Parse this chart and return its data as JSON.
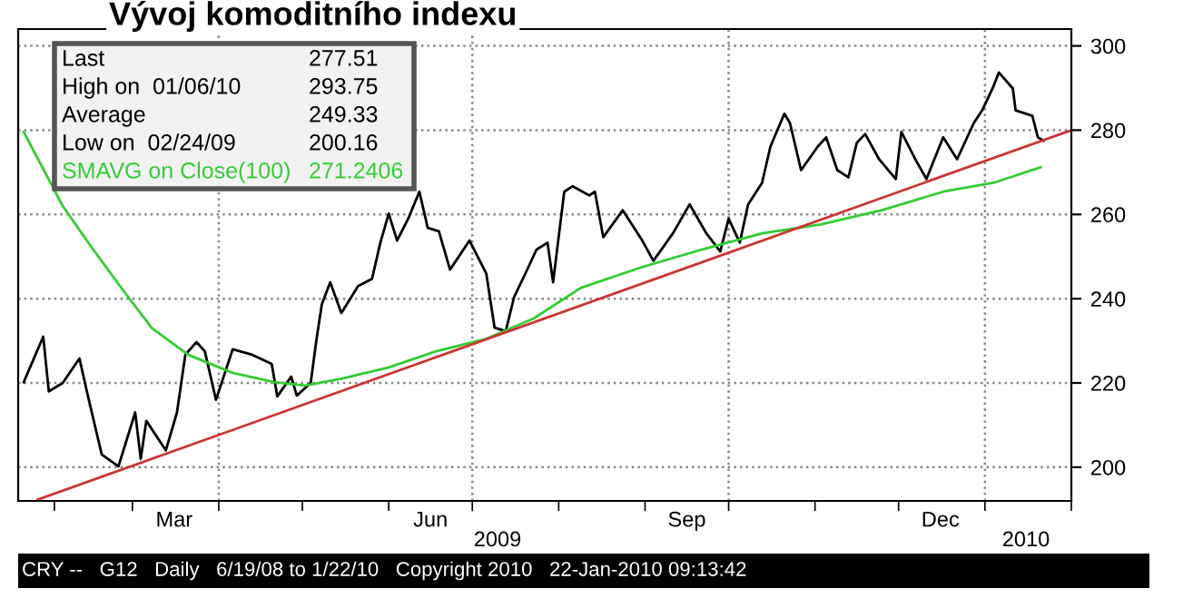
{
  "chart_data": {
    "type": "line",
    "title": "Vývoj komoditního indexu",
    "x": [
      "2009-01-21",
      "2009-01-28",
      "2009-01-30",
      "2009-02-04",
      "2009-02-10",
      "2009-02-13",
      "2009-02-18",
      "2009-02-24",
      "2009-03-02",
      "2009-03-04",
      "2009-03-06",
      "2009-03-13",
      "2009-03-17",
      "2009-03-20",
      "2009-03-24",
      "2009-03-27",
      "2009-03-31",
      "2009-04-06",
      "2009-04-13",
      "2009-04-20",
      "2009-04-22",
      "2009-04-27",
      "2009-04-29",
      "2009-05-04",
      "2009-05-06",
      "2009-05-08",
      "2009-05-11",
      "2009-05-15",
      "2009-05-21",
      "2009-05-26",
      "2009-05-29",
      "2009-06-01",
      "2009-06-04",
      "2009-06-08",
      "2009-06-12",
      "2009-06-15",
      "2009-06-19",
      "2009-06-23",
      "2009-06-30",
      "2009-07-06",
      "2009-07-09",
      "2009-07-13",
      "2009-07-16",
      "2009-07-21",
      "2009-07-24",
      "2009-07-28",
      "2009-07-30",
      "2009-08-03",
      "2009-08-06",
      "2009-08-12",
      "2009-08-14",
      "2009-08-17",
      "2009-08-24",
      "2009-08-31",
      "2009-09-04",
      "2009-09-11",
      "2009-09-17",
      "2009-09-23",
      "2009-09-28",
      "2009-10-01",
      "2009-10-05",
      "2009-10-08",
      "2009-10-13",
      "2009-10-16",
      "2009-10-21",
      "2009-10-23",
      "2009-10-27",
      "2009-11-02",
      "2009-11-05",
      "2009-11-09",
      "2009-11-13",
      "2009-11-16",
      "2009-11-19",
      "2009-11-24",
      "2009-11-30",
      "2009-12-02",
      "2009-12-07",
      "2009-12-11",
      "2009-12-17",
      "2009-12-22",
      "2009-12-28",
      "2009-12-31",
      "2010-01-04",
      "2010-01-06",
      "2010-01-11",
      "2010-01-12",
      "2010-01-18",
      "2010-01-20",
      "2010-01-22"
    ],
    "series": [
      {
        "color": "#000000",
        "values": [
          220.2,
          231,
          218,
          220,
          225.8,
          217,
          203,
          200.2,
          213,
          202,
          211,
          204,
          213,
          226.7,
          229.7,
          227.5,
          216,
          228,
          226.7,
          224.5,
          216.8,
          221.5,
          217,
          220,
          230,
          238.7,
          243.9,
          236.6,
          243,
          244.7,
          253.3,
          260.2,
          253.8,
          259,
          265.4,
          256.8,
          256,
          246.9,
          253.8,
          246,
          233.1,
          232.3,
          240.4,
          247.3,
          251.6,
          253.3,
          243.9,
          265.4,
          266.7,
          264.5,
          265.4,
          254.6,
          261,
          253.8,
          249,
          255.5,
          262.4,
          255.5,
          251.2,
          259,
          253.3,
          262.4,
          267.5,
          276.1,
          283.9,
          281.7,
          270.5,
          276.1,
          278.3,
          270.5,
          268.8,
          277,
          279.1,
          273.1,
          268.4,
          279.6,
          273.1,
          268.4,
          278.3,
          273.1,
          281.7,
          284.7,
          290.3,
          293.7,
          289.9,
          284.7,
          283.4,
          278.3,
          277.5
        ]
      },
      {
        "name": "SMAVG on Close(100)",
        "color": "#33cc33",
        "x": [
          "2009-01-21",
          "2009-02-04",
          "2009-02-15",
          "2009-02-26",
          "2009-03-08",
          "2009-03-21",
          "2009-04-06",
          "2009-04-21",
          "2009-05-02",
          "2009-05-15",
          "2009-06-01",
          "2009-06-18",
          "2009-07-06",
          "2009-07-23",
          "2009-08-09",
          "2009-08-30",
          "2009-09-21",
          "2009-10-13",
          "2009-11-03",
          "2009-11-25",
          "2009-12-17",
          "2010-01-04",
          "2010-01-21"
        ],
        "values": [
          279.6,
          262,
          251.6,
          241.7,
          233,
          226.7,
          222.4,
          220.2,
          219.4,
          221,
          223.7,
          227.5,
          230.5,
          235.3,
          242.6,
          247.3,
          251.6,
          255.5,
          257.6,
          261,
          265.4,
          267.5,
          271.2
        ]
      },
      {
        "color": "#cc3333",
        "x": [
          "2009-01-26",
          "2010-02-01"
        ],
        "values": [
          192.3,
          280
        ]
      }
    ],
    "xlim": [
      "2009-01-19",
      "2010-02-01"
    ],
    "xticks": [
      {
        "value": "2009-02-01",
        "label": null
      },
      {
        "value": "2009-03-01",
        "label": null
      },
      {
        "value": "2009-03-16",
        "label": "Mar"
      },
      {
        "value": "2009-04-01",
        "label": null
      },
      {
        "value": "2009-05-01",
        "label": null
      },
      {
        "value": "2009-06-01",
        "label": null
      },
      {
        "value": "2009-06-16",
        "label": "Jun"
      },
      {
        "value": "2009-07-01",
        "label": null
      },
      {
        "value": "2009-08-01",
        "label": null
      },
      {
        "value": "2009-09-01",
        "label": null
      },
      {
        "value": "2009-09-16",
        "label": "Sep"
      },
      {
        "value": "2009-10-01",
        "label": null
      },
      {
        "value": "2009-11-01",
        "label": null
      },
      {
        "value": "2009-12-01",
        "label": null
      },
      {
        "value": "2009-12-16",
        "label": "Dec"
      },
      {
        "value": "2010-01-01",
        "label": null
      },
      {
        "value": "2010-02-01",
        "label": null
      }
    ],
    "ylim": [
      192,
      304
    ],
    "yticks": [
      200,
      220,
      240,
      260,
      280,
      300
    ],
    "grid": "y",
    "ref_lines": [
      {
        "axis": "x",
        "value": "2009-04-01",
        "line_style": "dotted",
        "color": "#888888"
      },
      {
        "axis": "x",
        "value": "2009-07-01",
        "line_style": "dotted",
        "color": "#888888"
      },
      {
        "axis": "x",
        "value": "2009-10-01",
        "line_style": "dotted",
        "color": "#888888"
      },
      {
        "axis": "x",
        "value": "2010-01-01",
        "line_style": "dotted",
        "color": "#888888"
      }
    ],
    "annotations": [
      "Last",
      "277.51",
      "High on  01/06/10",
      "293.75",
      "Average",
      "249.33",
      "Low on  02/24/09",
      "200.16",
      "271.2406",
      "2009",
      "2010",
      "CRY --   G12   Daily   6/19/08 to 1/22/10   Copyright 2010   22-Jan-2010 09:13:42"
    ]
  }
}
